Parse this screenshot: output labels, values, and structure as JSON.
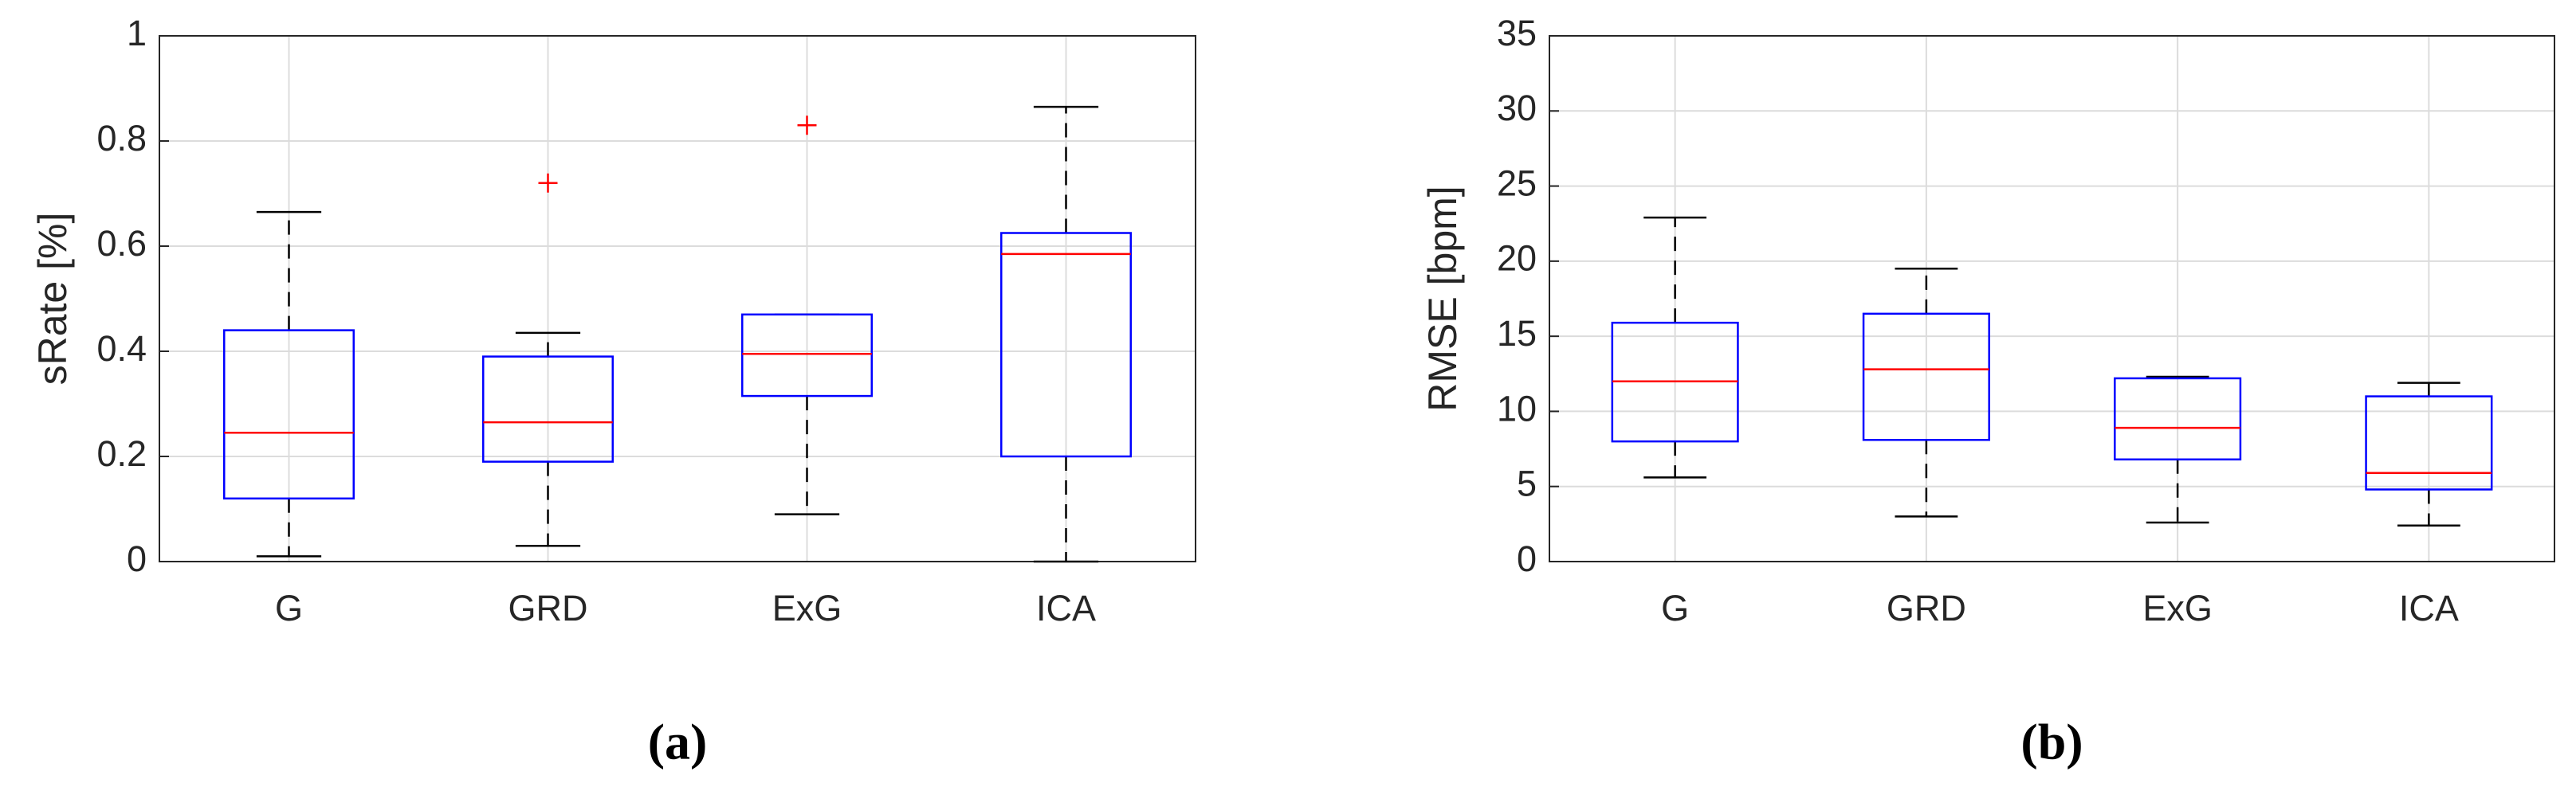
{
  "chart_data": [
    {
      "type": "box",
      "panel_label": "(a)",
      "ylabel": "sRate [%]",
      "categories": [
        "G",
        "GRD",
        "ExG",
        "ICA"
      ],
      "boxes": [
        {
          "low": 0.01,
          "q1": 0.12,
          "median": 0.245,
          "q3": 0.44,
          "high": 0.665
        },
        {
          "low": 0.03,
          "q1": 0.19,
          "median": 0.265,
          "q3": 0.39,
          "high": 0.435,
          "outliers": [
            0.72
          ]
        },
        {
          "low": 0.09,
          "q1": 0.315,
          "median": 0.395,
          "q3": 0.47,
          "high": 0.47,
          "outliers": [
            0.83
          ]
        },
        {
          "low": 0,
          "q1": 0.2,
          "median": 0.585,
          "q3": 0.625,
          "high": 0.865
        }
      ],
      "ylim": [
        0,
        1
      ],
      "yticks": [
        0,
        0.2,
        0.4,
        0.6,
        0.8,
        1
      ],
      "grid": true,
      "box_color": "#0000ff",
      "median_color": "#ff0000",
      "whisker_color": "#000000",
      "outlier_color": "#ff0000"
    },
    {
      "type": "box",
      "panel_label": "(b)",
      "ylabel": "RMSE [bpm]",
      "categories": [
        "G",
        "GRD",
        "ExG",
        "ICA"
      ],
      "boxes": [
        {
          "low": 5.6,
          "q1": 8,
          "median": 12,
          "q3": 15.9,
          "high": 22.9
        },
        {
          "low": 3,
          "q1": 8.1,
          "median": 12.8,
          "q3": 16.5,
          "high": 19.5
        },
        {
          "low": 2.6,
          "q1": 6.8,
          "median": 8.9,
          "q3": 12.2,
          "high": 12.3
        },
        {
          "low": 2.4,
          "q1": 4.8,
          "median": 5.9,
          "q3": 11,
          "high": 11.9
        }
      ],
      "ylim": [
        0,
        35
      ],
      "yticks": [
        0,
        5,
        10,
        15,
        20,
        25,
        30,
        35
      ],
      "grid": true,
      "box_color": "#0000ff",
      "median_color": "#ff0000",
      "whisker_color": "#000000",
      "outlier_color": "#ff0000"
    }
  ]
}
